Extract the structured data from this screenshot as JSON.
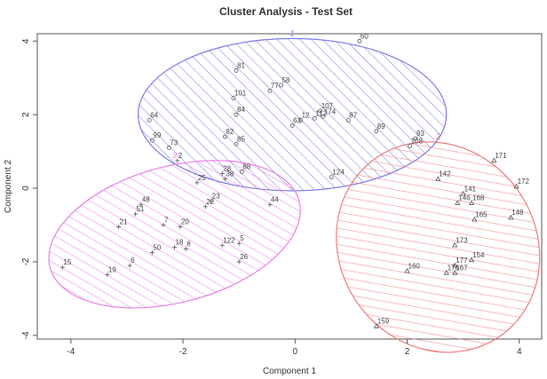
{
  "chart_data": {
    "type": "scatter",
    "title": "Cluster Analysis - Test Set",
    "xlabel": "Component 1",
    "ylabel": "Component 2",
    "xlim": [
      -4.6,
      4.4
    ],
    "ylim": [
      -4.1,
      4.2
    ],
    "xticks": [
      -4,
      -2,
      0,
      2,
      4
    ],
    "yticks": [
      -4,
      -2,
      0,
      2,
      4
    ],
    "grid": false,
    "clusters": [
      {
        "name": "1",
        "color": "#7b7bea",
        "marker": "circle",
        "ellipse": {
          "cx": -0.05,
          "cy": 2.0,
          "rx": 2.75,
          "ry": 2.07,
          "angle": 0
        },
        "points": [
          {
            "label": "60",
            "x": 1.15,
            "y": 4.0
          },
          {
            "label": "81",
            "x": -1.05,
            "y": 3.2
          },
          {
            "label": "58",
            "x": -0.25,
            "y": 2.8
          },
          {
            "label": "77",
            "x": -0.45,
            "y": 2.65
          },
          {
            "label": "101",
            "x": -1.1,
            "y": 2.45
          },
          {
            "label": "107",
            "x": 0.45,
            "y": 2.1
          },
          {
            "label": "84",
            "x": -1.05,
            "y": 2.0
          },
          {
            "label": "174",
            "x": 0.5,
            "y": 1.95
          },
          {
            "label": "112",
            "x": 0.35,
            "y": 1.9
          },
          {
            "label": "12",
            "x": 0.1,
            "y": 1.85
          },
          {
            "label": "87",
            "x": 0.95,
            "y": 1.85
          },
          {
            "label": "63",
            "x": -0.05,
            "y": 1.7
          },
          {
            "label": "64",
            "x": -2.6,
            "y": 1.85
          },
          {
            "label": "82",
            "x": -1.25,
            "y": 1.4
          },
          {
            "label": "89",
            "x": 1.45,
            "y": 1.55
          },
          {
            "label": "85",
            "x": -1.05,
            "y": 1.2
          },
          {
            "label": "93",
            "x": 2.15,
            "y": 1.35
          },
          {
            "label": "108",
            "x": 2.05,
            "y": 1.15
          },
          {
            "label": "99",
            "x": -2.55,
            "y": 1.3
          },
          {
            "label": "73",
            "x": -2.25,
            "y": 1.1
          },
          {
            "label": "88",
            "x": -0.95,
            "y": 0.45
          },
          {
            "label": "124",
            "x": 0.65,
            "y": 0.3
          }
        ]
      },
      {
        "name": "2",
        "color": "#f07c7c",
        "marker": "triangle",
        "ellipse": {
          "cx": 2.55,
          "cy": -1.6,
          "rx": 1.75,
          "ry": 2.95,
          "angle": 35
        },
        "points": [
          {
            "label": "171",
            "x": 3.55,
            "y": 0.75
          },
          {
            "label": "142",
            "x": 2.55,
            "y": 0.25
          },
          {
            "label": "172",
            "x": 3.95,
            "y": 0.05
          },
          {
            "label": "141",
            "x": 3.0,
            "y": -0.15
          },
          {
            "label": "146",
            "x": 2.9,
            "y": -0.4
          },
          {
            "label": "168",
            "x": 3.15,
            "y": -0.4
          },
          {
            "label": "148",
            "x": 3.85,
            "y": -0.8
          },
          {
            "label": "165",
            "x": 3.2,
            "y": -0.85
          },
          {
            "label": "173",
            "x": 2.85,
            "y": -1.55
          },
          {
            "label": "154",
            "x": 3.15,
            "y": -1.95
          },
          {
            "label": "177",
            "x": 2.85,
            "y": -2.1
          },
          {
            "label": "160",
            "x": 2.0,
            "y": -2.25
          },
          {
            "label": "176",
            "x": 2.7,
            "y": -2.3
          },
          {
            "label": "167",
            "x": 2.85,
            "y": -2.3
          },
          {
            "label": "159",
            "x": 1.45,
            "y": -3.75
          }
        ]
      },
      {
        "name": "3",
        "color": "#e87ee8",
        "marker": "plus",
        "ellipse": {
          "cx": -2.15,
          "cy": -1.25,
          "rx": 2.3,
          "ry": 1.85,
          "angle": 15
        },
        "points": [
          {
            "label": "2",
            "x": -2.1,
            "y": 0.75
          },
          {
            "label": "28",
            "x": -1.3,
            "y": 0.4
          },
          {
            "label": "38",
            "x": -1.25,
            "y": 0.25
          },
          {
            "label": "25",
            "x": -1.75,
            "y": 0.15
          },
          {
            "label": "23",
            "x": -1.5,
            "y": -0.35
          },
          {
            "label": "48",
            "x": -2.75,
            "y": -0.45
          },
          {
            "label": "22",
            "x": -1.6,
            "y": -0.5
          },
          {
            "label": "44",
            "x": -0.45,
            "y": -0.45
          },
          {
            "label": "51",
            "x": -2.85,
            "y": -0.7
          },
          {
            "label": "21",
            "x": -3.15,
            "y": -1.05
          },
          {
            "label": "7",
            "x": -2.35,
            "y": -1.0
          },
          {
            "label": "20",
            "x": -2.05,
            "y": -1.05
          },
          {
            "label": "122",
            "x": -1.3,
            "y": -1.55
          },
          {
            "label": "5",
            "x": -1.0,
            "y": -1.5
          },
          {
            "label": "18",
            "x": -2.15,
            "y": -1.6
          },
          {
            "label": "8",
            "x": -1.95,
            "y": -1.65
          },
          {
            "label": "50",
            "x": -2.55,
            "y": -1.75
          },
          {
            "label": "26",
            "x": -1.0,
            "y": -2.0
          },
          {
            "label": "6",
            "x": -2.95,
            "y": -2.1
          },
          {
            "label": "15",
            "x": -4.15,
            "y": -2.15
          },
          {
            "label": "19",
            "x": -3.35,
            "y": -2.35
          }
        ]
      }
    ]
  }
}
